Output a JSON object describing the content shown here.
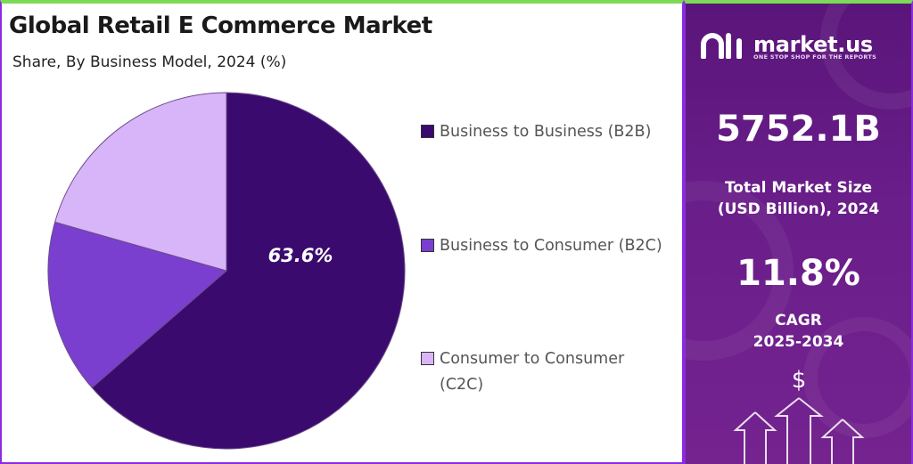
{
  "title": "Global Retail E Commerce Market",
  "subtitle": "Share, By Business Model, 2024 (%)",
  "chart_data": {
    "type": "pie",
    "categories": [
      "Business to Business (B2B)",
      "Business to Consumer (B2C)",
      "Consumer to Consumer (C2C)"
    ],
    "values": [
      63.6,
      15.8,
      20.6
    ],
    "colors": [
      "#3b0a6e",
      "#7a3fcf",
      "#d8b4f8"
    ],
    "data_labels": [
      "63.6%",
      "",
      ""
    ],
    "legend_position": "right"
  },
  "brand": {
    "name": "market.us",
    "tagline": "ONE STOP SHOP FOR THE REPORTS"
  },
  "stats": {
    "market_size": "5752.1B",
    "market_size_label_line1": "Total Market Size",
    "market_size_label_line2": "(USD Billion), 2024",
    "cagr": "11.8%",
    "cagr_label_line1": "CAGR",
    "cagr_label_line2": "2025-2034",
    "currency_symbol": "$"
  },
  "icons": [
    "logo-icon",
    "dollar-icon",
    "up-arrows-icon"
  ]
}
